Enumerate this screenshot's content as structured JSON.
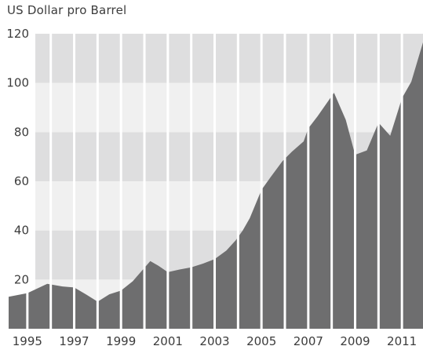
{
  "chart_data": {
    "type": "area",
    "title": "US Dollar pro Barrel",
    "xlabel": "",
    "ylabel": "",
    "ylim": [
      0,
      120
    ],
    "xlim": [
      1994.2,
      2011.9
    ],
    "yticks": [
      20,
      40,
      60,
      80,
      100,
      120
    ],
    "xticks": [
      "1995",
      "1997",
      "1999",
      "2001",
      "2003",
      "2005",
      "2007",
      "2009",
      "2011"
    ],
    "band_colors": [
      "#f0f0f0",
      "#dededf"
    ],
    "area_color": "#6e6e6f",
    "segment_separators": "white",
    "series": [
      {
        "values": [
          [
            1994.2,
            13
          ],
          [
            1995.0,
            14.5
          ],
          [
            1995.85,
            18.3
          ],
          [
            1996.5,
            17.2
          ],
          [
            1997.0,
            16.8
          ],
          [
            1997.5,
            14.0
          ],
          [
            1998.0,
            11.0
          ],
          [
            1998.5,
            14.0
          ],
          [
            1999.0,
            15.5
          ],
          [
            1999.5,
            19.3
          ],
          [
            2000.25,
            27.5
          ],
          [
            2000.6,
            25.6
          ],
          [
            2001.0,
            23.0
          ],
          [
            2001.5,
            24.1
          ],
          [
            2002.0,
            25.0
          ],
          [
            2002.5,
            26.5
          ],
          [
            2003.0,
            28.3
          ],
          [
            2003.5,
            31.8
          ],
          [
            2003.9,
            36.0
          ],
          [
            2004.2,
            40.0
          ],
          [
            2004.5,
            45.0
          ],
          [
            2005.0,
            56.5
          ],
          [
            2005.4,
            61.8
          ],
          [
            2005.9,
            68.2
          ],
          [
            2006.3,
            72.0
          ],
          [
            2006.8,
            76.2
          ],
          [
            2007.0,
            81.5
          ],
          [
            2007.4,
            86.5
          ],
          [
            2008.1,
            96.0
          ],
          [
            2008.6,
            85.0
          ],
          [
            2009.0,
            70.8
          ],
          [
            2009.5,
            72.5
          ],
          [
            2010.0,
            83.8
          ],
          [
            2010.5,
            78.5
          ],
          [
            2011.0,
            93.8
          ],
          [
            2011.4,
            100.5
          ],
          [
            2011.9,
            116.5
          ]
        ]
      }
    ]
  }
}
